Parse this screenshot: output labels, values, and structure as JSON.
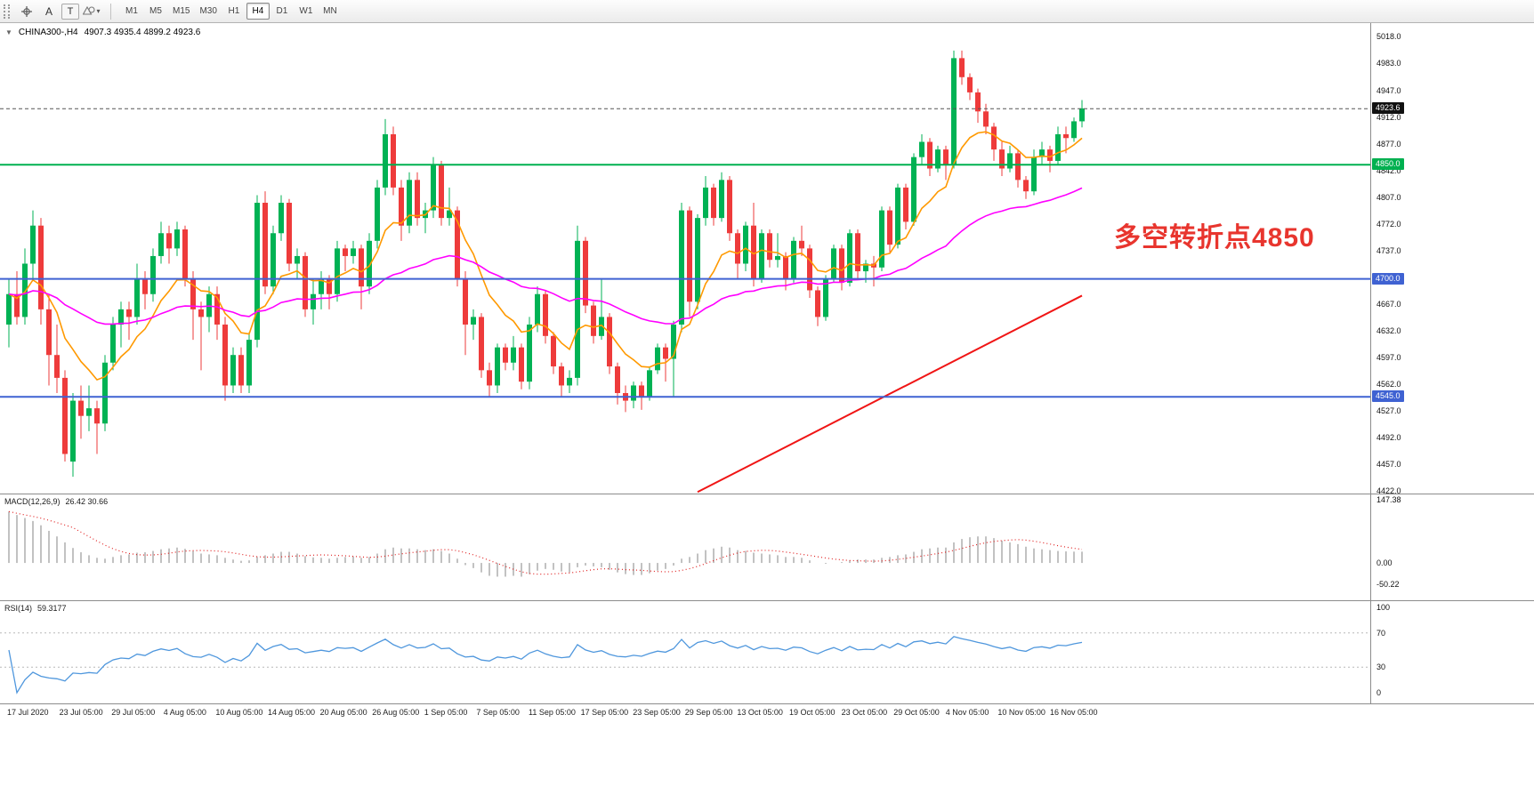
{
  "icons": {
    "collapse": "▼",
    "caret_down": "▾"
  },
  "toolbar": {
    "tools": {
      "text_label": "A",
      "textbox_label": "T"
    },
    "timeframes": [
      "M1",
      "M5",
      "M15",
      "M30",
      "H1",
      "H4",
      "D1",
      "W1",
      "MN"
    ],
    "active_timeframe": "H4"
  },
  "chart_data": {
    "type": "candlestick",
    "title": "CHINA300-,H4",
    "ohlc_text": "4907.3 4935.4 4899.2 4923.6",
    "open": 4907.3,
    "high": 4935.4,
    "low": 4899.2,
    "close": 4923.6,
    "annotation": {
      "text": "多空转折点4850",
      "color": "#e8352e"
    },
    "colors": {
      "candle_up": "#00b254",
      "candle_down": "#ee3b3b"
    },
    "price_axis": [
      5018.0,
      4983.0,
      4947.0,
      4912.0,
      4877.0,
      4842.0,
      4807.0,
      4772.0,
      4737.0,
      4702.0,
      4667.0,
      4632.0,
      4597.0,
      4562.0,
      4527.0,
      4492.0,
      4457.0,
      4422.0
    ],
    "time_labels": [
      "17 Jul 2020",
      "23 Jul 05:00",
      "29 Jul 05:00",
      "4 Aug 05:00",
      "10 Aug 05:00",
      "14 Aug 05:00",
      "20 Aug 05:00",
      "26 Aug 05:00",
      "1 Sep 05:00",
      "7 Sep 05:00",
      "11 Sep 05:00",
      "17 Sep 05:00",
      "23 Sep 05:00",
      "29 Sep 05:00",
      "13 Oct 05:00",
      "19 Oct 05:00",
      "23 Oct 05:00",
      "29 Oct 05:00",
      "4 Nov 05:00",
      "10 Nov 05:00",
      "16 Nov 05:00"
    ],
    "levels": [
      {
        "price": 4923.6,
        "label": "4923.6",
        "line_color": "#555555",
        "line_style": "dashed",
        "tag_bg": "#111111"
      },
      {
        "price": 4850.0,
        "label": "4850.0",
        "line_color": "#00b050",
        "line_style": "solid",
        "tag_bg": "#00b050"
      },
      {
        "price": 4700.0,
        "label": "4700.0",
        "line_color": "#3f62d2",
        "line_style": "solid",
        "tag_bg": "#3f62d2"
      },
      {
        "price": 4545.0,
        "label": "4545.0",
        "line_color": "#3f62d2",
        "line_style": "solid",
        "tag_bg": "#3f62d2"
      }
    ],
    "trendline": {
      "color": "#f01515",
      "from_index": 86,
      "from_price": 4420,
      "to_index": 134,
      "to_price": 4678
    },
    "ma_fast": {
      "color": "#ff9900",
      "period": 10
    },
    "ma_slow": {
      "color": "#ff00ff",
      "period": 45
    },
    "candles": [
      [
        4640,
        4700,
        4610,
        4680
      ],
      [
        4680,
        4710,
        4640,
        4650
      ],
      [
        4650,
        4740,
        4640,
        4720
      ],
      [
        4720,
        4790,
        4700,
        4770
      ],
      [
        4770,
        4780,
        4640,
        4660
      ],
      [
        4660,
        4680,
        4560,
        4600
      ],
      [
        4600,
        4640,
        4550,
        4570
      ],
      [
        4570,
        4580,
        4460,
        4470
      ],
      [
        4460,
        4550,
        4440,
        4540
      ],
      [
        4540,
        4560,
        4490,
        4520
      ],
      [
        4520,
        4560,
        4500,
        4530
      ],
      [
        4530,
        4540,
        4470,
        4510
      ],
      [
        4510,
        4600,
        4500,
        4590
      ],
      [
        4590,
        4650,
        4580,
        4640
      ],
      [
        4640,
        4670,
        4610,
        4660
      ],
      [
        4660,
        4670,
        4620,
        4650
      ],
      [
        4650,
        4720,
        4640,
        4700
      ],
      [
        4700,
        4710,
        4660,
        4680
      ],
      [
        4680,
        4740,
        4670,
        4730
      ],
      [
        4730,
        4775,
        4720,
        4760
      ],
      [
        4760,
        4770,
        4720,
        4740
      ],
      [
        4740,
        4775,
        4730,
        4765
      ],
      [
        4765,
        4770,
        4690,
        4700
      ],
      [
        4700,
        4710,
        4620,
        4660
      ],
      [
        4660,
        4670,
        4580,
        4650
      ],
      [
        4650,
        4690,
        4630,
        4680
      ],
      [
        4680,
        4690,
        4620,
        4640
      ],
      [
        4640,
        4650,
        4540,
        4560
      ],
      [
        4560,
        4610,
        4550,
        4600
      ],
      [
        4600,
        4610,
        4550,
        4560
      ],
      [
        4560,
        4630,
        4550,
        4620
      ],
      [
        4620,
        4810,
        4610,
        4800
      ],
      [
        4800,
        4815,
        4680,
        4690
      ],
      [
        4690,
        4770,
        4680,
        4760
      ],
      [
        4760,
        4810,
        4750,
        4800
      ],
      [
        4800,
        4805,
        4710,
        4720
      ],
      [
        4720,
        4740,
        4700,
        4730
      ],
      [
        4730,
        4735,
        4650,
        4660
      ],
      [
        4660,
        4700,
        4640,
        4680
      ],
      [
        4680,
        4710,
        4660,
        4700
      ],
      [
        4700,
        4705,
        4660,
        4680
      ],
      [
        4680,
        4750,
        4670,
        4740
      ],
      [
        4740,
        4745,
        4710,
        4730
      ],
      [
        4730,
        4750,
        4720,
        4740
      ],
      [
        4740,
        4745,
        4660,
        4690
      ],
      [
        4690,
        4760,
        4680,
        4750
      ],
      [
        4750,
        4830,
        4740,
        4820
      ],
      [
        4820,
        4910,
        4810,
        4890
      ],
      [
        4890,
        4900,
        4810,
        4820
      ],
      [
        4820,
        4830,
        4750,
        4770
      ],
      [
        4770,
        4840,
        4760,
        4830
      ],
      [
        4830,
        4840,
        4770,
        4780
      ],
      [
        4780,
        4800,
        4760,
        4790
      ],
      [
        4790,
        4860,
        4780,
        4850
      ],
      [
        4850,
        4855,
        4770,
        4780
      ],
      [
        4780,
        4820,
        4770,
        4790
      ],
      [
        4790,
        4795,
        4690,
        4700
      ],
      [
        4700,
        4710,
        4600,
        4640
      ],
      [
        4640,
        4660,
        4620,
        4650
      ],
      [
        4650,
        4655,
        4570,
        4580
      ],
      [
        4580,
        4590,
        4545,
        4560
      ],
      [
        4560,
        4615,
        4550,
        4610
      ],
      [
        4610,
        4615,
        4580,
        4590
      ],
      [
        4590,
        4625,
        4580,
        4610
      ],
      [
        4610,
        4615,
        4555,
        4565
      ],
      [
        4565,
        4650,
        4555,
        4640
      ],
      [
        4640,
        4690,
        4630,
        4680
      ],
      [
        4680,
        4685,
        4615,
        4625
      ],
      [
        4625,
        4630,
        4575,
        4585
      ],
      [
        4585,
        4590,
        4545,
        4560
      ],
      [
        4560,
        4580,
        4550,
        4570
      ],
      [
        4570,
        4770,
        4560,
        4750
      ],
      [
        4750,
        4755,
        4655,
        4665
      ],
      [
        4665,
        4670,
        4615,
        4625
      ],
      [
        4625,
        4700,
        4620,
        4650
      ],
      [
        4650,
        4655,
        4575,
        4585
      ],
      [
        4585,
        4590,
        4535,
        4550
      ],
      [
        4550,
        4560,
        4525,
        4540
      ],
      [
        4540,
        4565,
        4530,
        4560
      ],
      [
        4560,
        4565,
        4528,
        4545
      ],
      [
        4545,
        4585,
        4540,
        4580
      ],
      [
        4580,
        4615,
        4575,
        4610
      ],
      [
        4610,
        4615,
        4565,
        4595
      ],
      [
        4595,
        4645,
        4545,
        4640
      ],
      [
        4640,
        4800,
        4630,
        4790
      ],
      [
        4790,
        4795,
        4650,
        4670
      ],
      [
        4670,
        4785,
        4660,
        4780
      ],
      [
        4780,
        4835,
        4770,
        4820
      ],
      [
        4820,
        4825,
        4770,
        4780
      ],
      [
        4780,
        4840,
        4775,
        4830
      ],
      [
        4830,
        4835,
        4750,
        4760
      ],
      [
        4760,
        4765,
        4700,
        4720
      ],
      [
        4720,
        4775,
        4710,
        4770
      ],
      [
        4770,
        4800,
        4690,
        4700
      ],
      [
        4700,
        4765,
        4695,
        4760
      ],
      [
        4760,
        4765,
        4715,
        4725
      ],
      [
        4725,
        4760,
        4715,
        4730
      ],
      [
        4730,
        4735,
        4685,
        4700
      ],
      [
        4700,
        4755,
        4695,
        4750
      ],
      [
        4750,
        4770,
        4730,
        4740
      ],
      [
        4740,
        4745,
        4675,
        4685
      ],
      [
        4685,
        4690,
        4638,
        4650
      ],
      [
        4650,
        4705,
        4645,
        4700
      ],
      [
        4700,
        4745,
        4695,
        4740
      ],
      [
        4740,
        4745,
        4685,
        4695
      ],
      [
        4695,
        4765,
        4690,
        4760
      ],
      [
        4760,
        4765,
        4700,
        4710
      ],
      [
        4710,
        4725,
        4695,
        4720
      ],
      [
        4720,
        4730,
        4690,
        4715
      ],
      [
        4715,
        4795,
        4710,
        4790
      ],
      [
        4790,
        4795,
        4735,
        4745
      ],
      [
        4745,
        4825,
        4740,
        4820
      ],
      [
        4820,
        4825,
        4765,
        4775
      ],
      [
        4775,
        4865,
        4770,
        4860
      ],
      [
        4860,
        4890,
        4850,
        4880
      ],
      [
        4880,
        4885,
        4835,
        4845
      ],
      [
        4845,
        4875,
        4840,
        4870
      ],
      [
        4870,
        4875,
        4830,
        4850
      ],
      [
        4850,
        5000,
        4845,
        4990
      ],
      [
        4990,
        5000,
        4955,
        4965
      ],
      [
        4965,
        4970,
        4935,
        4945
      ],
      [
        4945,
        4950,
        4905,
        4920
      ],
      [
        4920,
        4930,
        4890,
        4900
      ],
      [
        4900,
        4905,
        4855,
        4870
      ],
      [
        4870,
        4880,
        4835,
        4845
      ],
      [
        4845,
        4875,
        4840,
        4865
      ],
      [
        4865,
        4870,
        4820,
        4830
      ],
      [
        4830,
        4835,
        4805,
        4815
      ],
      [
        4815,
        4870,
        4810,
        4860
      ],
      [
        4860,
        4880,
        4850,
        4870
      ],
      [
        4870,
        4875,
        4840,
        4855
      ],
      [
        4855,
        4900,
        4850,
        4890
      ],
      [
        4890,
        4900,
        4865,
        4885
      ],
      [
        4885,
        4912,
        4880,
        4907
      ],
      [
        4907,
        4935,
        4899,
        4924
      ]
    ],
    "macd": {
      "name": "MACD(12,26,9)",
      "values_text": "26.42 30.66",
      "axis": [
        147.38,
        0,
        -50.22
      ],
      "bar_color": "#a8a8a8",
      "signal_color": "#e02020",
      "histogram": [
        120,
        112,
        105,
        98,
        88,
        75,
        62,
        48,
        35,
        25,
        18,
        12,
        10,
        14,
        18,
        20,
        24,
        25,
        28,
        32,
        34,
        36,
        33,
        28,
        22,
        20,
        18,
        12,
        8,
        5,
        6,
        14,
        18,
        22,
        26,
        26,
        22,
        16,
        13,
        12,
        10,
        12,
        14,
        15,
        12,
        14,
        22,
        32,
        36,
        34,
        34,
        32,
        30,
        32,
        28,
        22,
        10,
        -5,
        -12,
        -22,
        -30,
        -32,
        -32,
        -30,
        -32,
        -26,
        -18,
        -14,
        -16,
        -20,
        -22,
        -10,
        -6,
        -8,
        -10,
        -16,
        -22,
        -26,
        -28,
        -28,
        -24,
        -18,
        -14,
        -6,
        10,
        14,
        22,
        30,
        34,
        38,
        36,
        30,
        28,
        24,
        22,
        20,
        18,
        14,
        14,
        12,
        6,
        0,
        -2,
        0,
        2,
        6,
        8,
        8,
        8,
        12,
        14,
        18,
        20,
        26,
        32,
        34,
        36,
        36,
        48,
        56,
        60,
        62,
        62,
        58,
        52,
        48,
        44,
        38,
        34,
        32,
        30,
        28,
        27,
        26.5,
        26.42
      ]
    },
    "rsi": {
      "name": "RSI(14)",
      "value_text": "59.3177",
      "axis": [
        100,
        70,
        30,
        0
      ],
      "levels": [
        70,
        30
      ],
      "line_color": "#4f97dd",
      "period": 14
    }
  }
}
